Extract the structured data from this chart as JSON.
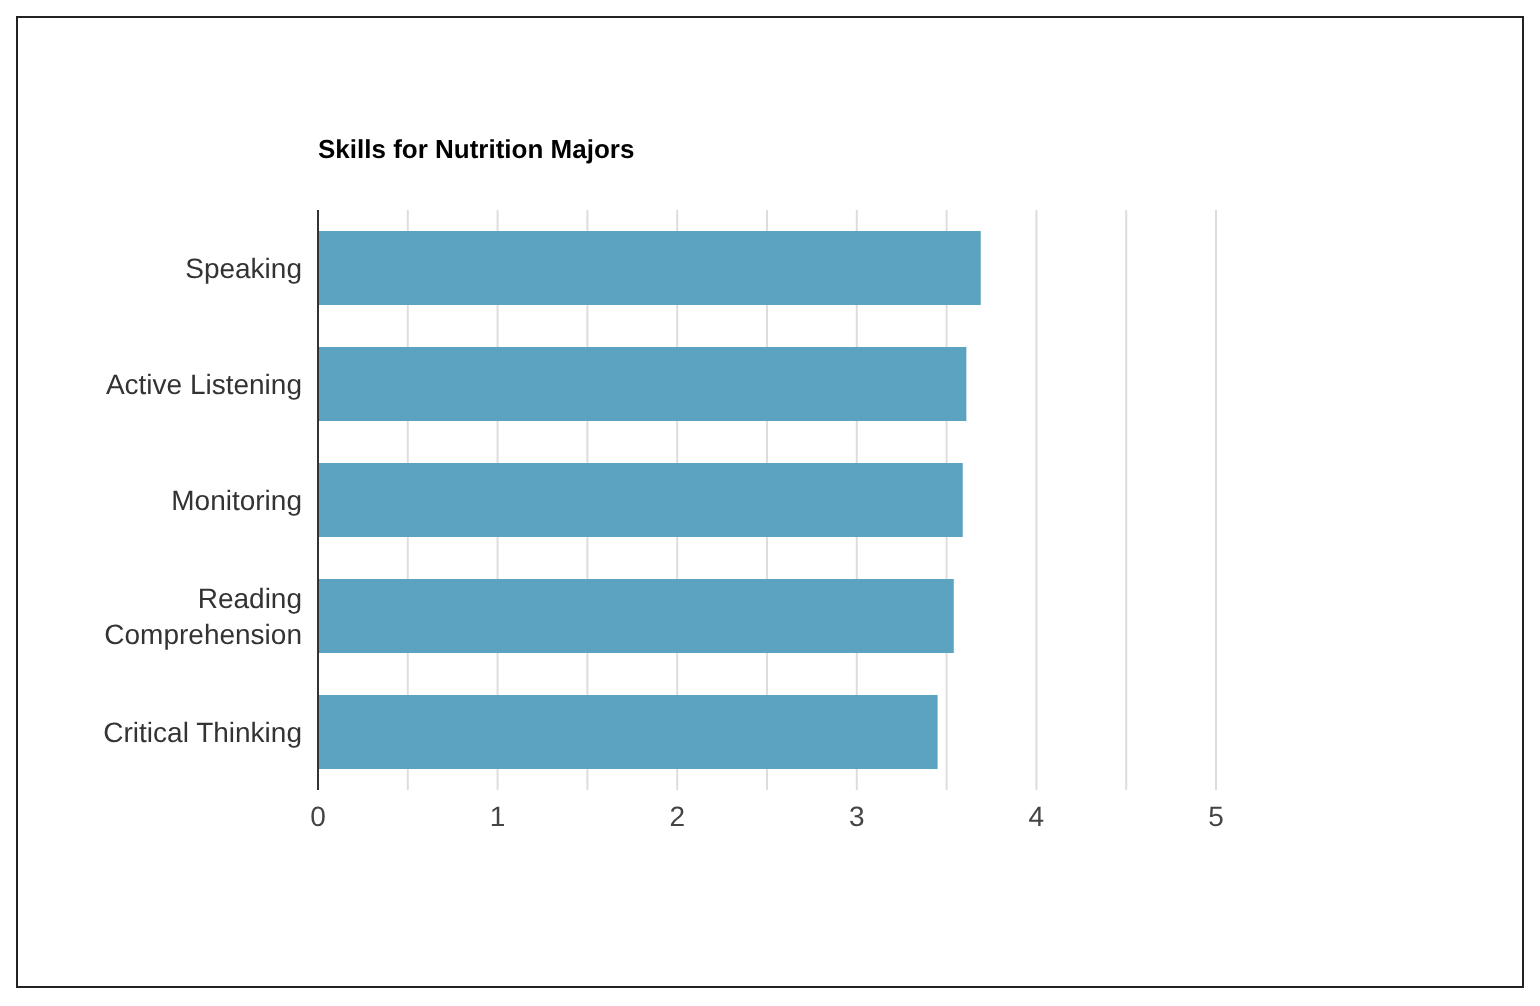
{
  "chart_data": {
    "type": "bar",
    "orientation": "horizontal",
    "title": "Skills for Nutrition Majors",
    "categories": [
      "Speaking",
      "Active Listening",
      "Monitoring",
      "Reading Comprehension",
      "Critical Thinking"
    ],
    "values": [
      3.69,
      3.61,
      3.59,
      3.54,
      3.45
    ],
    "color": "#5ba3c0",
    "xlim": [
      0,
      5
    ],
    "xticks": [
      0,
      {
        "value": 0.5,
        "label": null
      },
      1,
      {
        "value": 1.5,
        "label": null
      },
      2,
      {
        "value": 2.5,
        "label": null
      },
      3,
      {
        "value": 3.5,
        "label": null
      },
      4,
      {
        "value": 4.5,
        "label": null
      },
      5
    ],
    "grid": "x"
  }
}
